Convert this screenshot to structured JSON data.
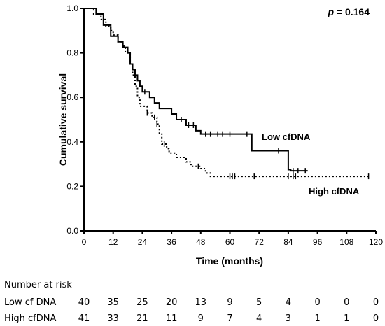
{
  "chart_data": {
    "type": "line",
    "subtype": "kaplan-meier",
    "xlabel": "Time (months)",
    "ylabel": "Cumulative survival",
    "xlim": [
      0,
      120
    ],
    "ylim": [
      0,
      1.0
    ],
    "xticks": [
      "0",
      "12",
      "24",
      "36",
      "48",
      "60",
      "72",
      "84",
      "96",
      "108",
      "120"
    ],
    "yticks": [
      "0.0",
      "0.2",
      "0.4",
      "0.6",
      "0.8",
      "1.0"
    ],
    "grid": false,
    "annotation": "p = 0.164",
    "annotation_parts": {
      "p": "p",
      "rest": " = 0.164"
    },
    "series": [
      {
        "name": "Low cfDNA",
        "line_style": "solid",
        "steps": [
          [
            0,
            1.0
          ],
          [
            5,
            0.975
          ],
          [
            8,
            0.925
          ],
          [
            11,
            0.875
          ],
          [
            14,
            0.85
          ],
          [
            16,
            0.825
          ],
          [
            18,
            0.8
          ],
          [
            19,
            0.75
          ],
          [
            20,
            0.725
          ],
          [
            21,
            0.7
          ],
          [
            22,
            0.675
          ],
          [
            23,
            0.65
          ],
          [
            24,
            0.625
          ],
          [
            27,
            0.6
          ],
          [
            29,
            0.575
          ],
          [
            31,
            0.55
          ],
          [
            36,
            0.525
          ],
          [
            38,
            0.5
          ],
          [
            42,
            0.475
          ],
          [
            46,
            0.45
          ],
          [
            48,
            0.435
          ],
          [
            69,
            0.36
          ],
          [
            84,
            0.275
          ],
          [
            85,
            0.27
          ],
          [
            92,
            0.27
          ]
        ],
        "censored": [
          25,
          40,
          43,
          45,
          50,
          52,
          55,
          57,
          60,
          67,
          80,
          86,
          88,
          91
        ]
      },
      {
        "name": "High cfDNA",
        "line_style": "dotted",
        "steps": [
          [
            0,
            1.0
          ],
          [
            4,
            0.975
          ],
          [
            7,
            0.95
          ],
          [
            9,
            0.92
          ],
          [
            11,
            0.9
          ],
          [
            12,
            0.88
          ],
          [
            14,
            0.85
          ],
          [
            16,
            0.83
          ],
          [
            17,
            0.8
          ],
          [
            19,
            0.75
          ],
          [
            20,
            0.7
          ],
          [
            21,
            0.65
          ],
          [
            22,
            0.6
          ],
          [
            23,
            0.56
          ],
          [
            26,
            0.53
          ],
          [
            28,
            0.51
          ],
          [
            30,
            0.48
          ],
          [
            31,
            0.44
          ],
          [
            32,
            0.39
          ],
          [
            34,
            0.37
          ],
          [
            35,
            0.35
          ],
          [
            38,
            0.33
          ],
          [
            42,
            0.31
          ],
          [
            44,
            0.29
          ],
          [
            48,
            0.28
          ],
          [
            50,
            0.26
          ],
          [
            52,
            0.245
          ],
          [
            117,
            0.245
          ]
        ],
        "censored": [
          26,
          29,
          30,
          33,
          47,
          60,
          61,
          62,
          70,
          84,
          86,
          87,
          117
        ]
      }
    ],
    "legend_labels": [
      {
        "text": "Low cfDNA"
      },
      {
        "text": "High cfDNA"
      }
    ]
  },
  "risk_table": {
    "title": "Number at risk",
    "time_points": [
      0,
      12,
      24,
      36,
      48,
      60,
      72,
      84,
      96,
      108,
      120
    ],
    "rows": [
      {
        "label": "Low cf DNA",
        "values": [
          "40",
          "35",
          "25",
          "20",
          "13",
          "9",
          "5",
          "4",
          "0",
          "0",
          "0"
        ]
      },
      {
        "label": "High cfDNA",
        "values": [
          "41",
          "33",
          "21",
          "11",
          "9",
          "7",
          "4",
          "3",
          "1",
          "1",
          "0"
        ]
      }
    ]
  }
}
